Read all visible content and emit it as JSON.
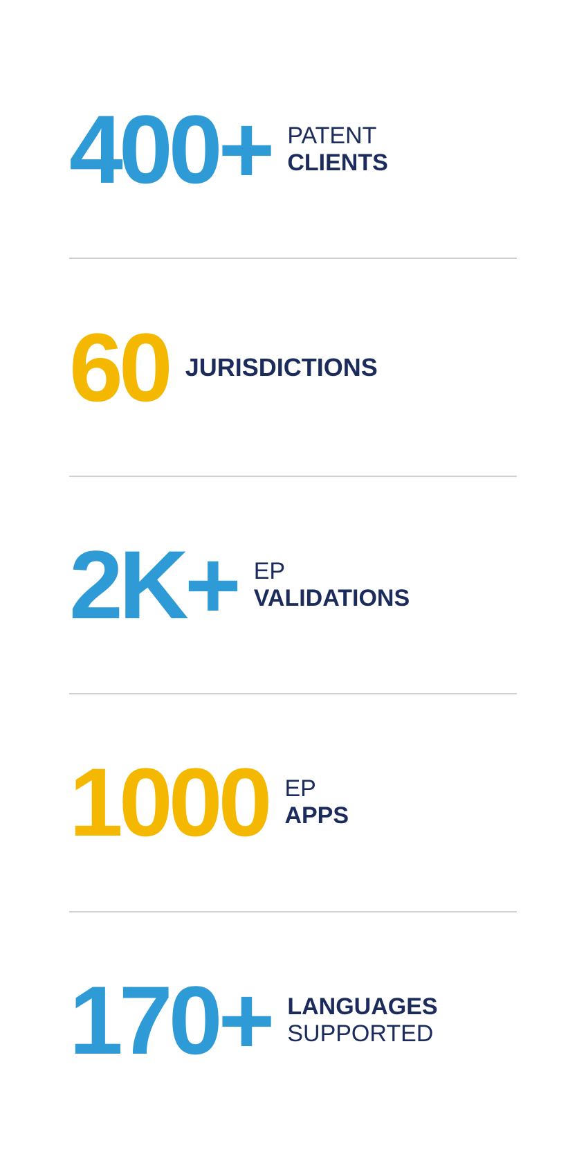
{
  "infographic": {
    "type": "infographic",
    "background_color": "#ffffff",
    "divider_color": "#d0d0d0",
    "colors": {
      "blue": "#2e9bd6",
      "yellow": "#f5b800",
      "dark_navy": "#1a2b5c"
    },
    "typography": {
      "number_fontsize": 140,
      "number_fontweight": 600,
      "label_fontsize": 34,
      "label_light_weight": 400,
      "label_bold_weight": 800
    },
    "stats": [
      {
        "number": "400+",
        "number_color": "#2e9bd6",
        "label_line1": "PATENT",
        "label_line1_weight": "light",
        "label_line2": "CLIENTS",
        "label_line2_weight": "bold"
      },
      {
        "number": "60",
        "number_color": "#f5b800",
        "label_single": "JURISDICTIONS"
      },
      {
        "number": "2K+",
        "number_color": "#2e9bd6",
        "label_line1": "EP",
        "label_line1_weight": "light",
        "label_line2": "VALIDATIONS",
        "label_line2_weight": "bold"
      },
      {
        "number": "1000",
        "number_color": "#f5b800",
        "label_line1": "EP",
        "label_line1_weight": "light",
        "label_line2": "APPS",
        "label_line2_weight": "bold"
      },
      {
        "number": "170+",
        "number_color": "#2e9bd6",
        "label_line1": "LANGUAGES",
        "label_line1_weight": "bold",
        "label_line2": "SUPPORTED",
        "label_line2_weight": "light"
      }
    ]
  }
}
